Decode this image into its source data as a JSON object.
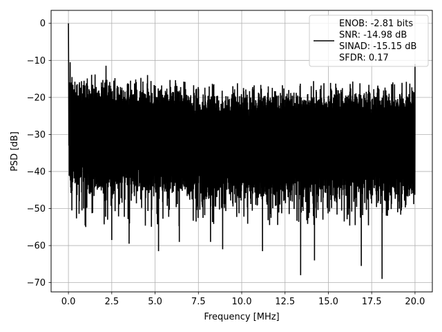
{
  "chart_data": {
    "type": "line",
    "title": "",
    "xlabel": "Frequency [MHz]",
    "ylabel": "PSD [dB]",
    "xlim": [
      -1.0,
      21.0
    ],
    "ylim": [
      -72.5,
      3.5
    ],
    "xticks": [
      0.0,
      2.5,
      5.0,
      7.5,
      10.0,
      12.5,
      15.0,
      17.5,
      20.0
    ],
    "xtick_labels": [
      "0.0",
      "2.5",
      "5.0",
      "7.5",
      "10.0",
      "12.5",
      "15.0",
      "17.5",
      "20.0"
    ],
    "yticks": [
      0,
      -10,
      -20,
      -30,
      -40,
      -50,
      -60,
      -70
    ],
    "ytick_labels": [
      "0",
      "−10",
      "−20",
      "−30",
      "−40",
      "−50",
      "−60",
      "−70"
    ],
    "grid": true,
    "legend_position": "top-right",
    "legend_lines": [
      "ENOB: -2.81 bits",
      "SNR: -14.98 dB",
      "SINAD: -15.15 dB",
      "SFDR: 0.17"
    ],
    "line_color": "#000000",
    "series": [
      {
        "noise_floor_top_db": -22,
        "noise_floor_bottom_db": -44,
        "notable_points": [
          {
            "x": 0.0,
            "y": 0.0
          },
          {
            "x": 0.03,
            "y": -33
          },
          {
            "x": 0.1,
            "y": -10.5
          },
          {
            "x": 0.15,
            "y": -16
          },
          {
            "x": 0.3,
            "y": -40
          },
          {
            "x": 0.5,
            "y": -17
          },
          {
            "x": 0.9,
            "y": -15.5
          },
          {
            "x": 1.0,
            "y": -55
          },
          {
            "x": 2.1,
            "y": -16
          },
          {
            "x": 2.5,
            "y": -58.5
          },
          {
            "x": 3.5,
            "y": -59.5
          },
          {
            "x": 5.2,
            "y": -61.5
          },
          {
            "x": 6.4,
            "y": -59
          },
          {
            "x": 8.2,
            "y": -59
          },
          {
            "x": 8.9,
            "y": -61
          },
          {
            "x": 11.2,
            "y": -61.5
          },
          {
            "x": 13.4,
            "y": -68
          },
          {
            "x": 14.2,
            "y": -64
          },
          {
            "x": 16.9,
            "y": -65.5
          },
          {
            "x": 18.1,
            "y": -69
          },
          {
            "x": 19.0,
            "y": -51
          },
          {
            "x": 20.0,
            "y": -11
          }
        ]
      }
    ]
  }
}
